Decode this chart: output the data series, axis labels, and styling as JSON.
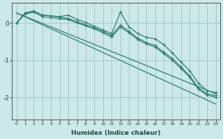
{
  "xlabel": "Humidex (Indice chaleur)",
  "background_color": "#cce8e8",
  "grid_color": "#aacccc",
  "line_color": "#2e7d72",
  "xlim": [
    -0.5,
    23.5
  ],
  "ylim": [
    -2.6,
    0.55
  ],
  "yticks": [
    0,
    -1,
    -2
  ],
  "xticks": [
    0,
    1,
    2,
    3,
    4,
    5,
    6,
    7,
    8,
    9,
    10,
    11,
    12,
    13,
    14,
    15,
    16,
    17,
    18,
    19,
    20,
    21,
    22,
    23
  ],
  "series_jagged": [
    0.0,
    0.28,
    0.33,
    0.22,
    0.2,
    0.18,
    0.22,
    0.1,
    0.02,
    -0.08,
    -0.18,
    -0.28,
    0.3,
    -0.1,
    -0.28,
    -0.38,
    -0.42,
    -0.58,
    -0.8,
    -1.05,
    -1.28,
    -1.62,
    -1.82,
    -1.87
  ],
  "series_line1": [
    0.0,
    0.28,
    0.33,
    0.22,
    0.2,
    0.16,
    0.13,
    0.04,
    -0.04,
    -0.12,
    -0.22,
    -0.33,
    -0.05,
    -0.22,
    -0.4,
    -0.52,
    -0.6,
    -0.78,
    -0.95,
    -1.18,
    -1.42,
    -1.75,
    -1.9,
    -1.95
  ],
  "series_line2": [
    0.0,
    0.25,
    0.3,
    0.18,
    0.15,
    0.12,
    0.1,
    0.01,
    -0.07,
    -0.15,
    -0.26,
    -0.37,
    -0.1,
    -0.26,
    -0.44,
    -0.56,
    -0.64,
    -0.82,
    -1.0,
    -1.22,
    -1.46,
    -1.78,
    -1.94,
    -1.99
  ]
}
